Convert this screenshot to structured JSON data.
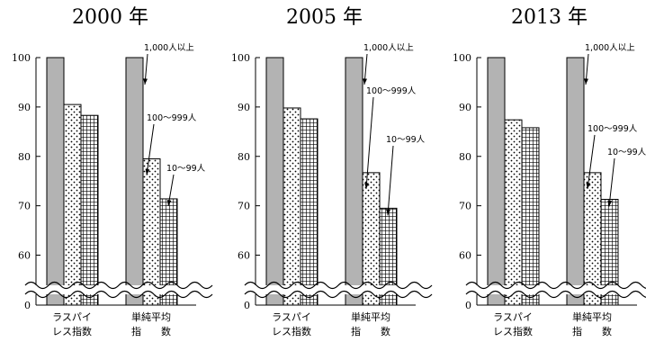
{
  "chart_data": [
    {
      "type": "bar",
      "title": "2000 年",
      "categories": [
        "ラスパイ\nレス指数",
        "単純平均\n指　　数"
      ],
      "series": [
        {
          "name": "1,000人以上",
          "values": [
            100,
            100
          ]
        },
        {
          "name": "100～999人",
          "values": [
            90.5,
            79.5
          ]
        },
        {
          "name": "10～99人",
          "values": [
            88.3,
            71.4
          ]
        }
      ],
      "yticks": [
        0,
        60,
        70,
        80,
        90,
        100
      ],
      "ylim": [
        55,
        100
      ],
      "axis_break": true,
      "grid": false
    },
    {
      "type": "bar",
      "title": "2005 年",
      "categories": [
        "ラスパイ\nレス指数",
        "単純平均\n指　　数"
      ],
      "series": [
        {
          "name": "1,000人以上",
          "values": [
            100,
            100
          ]
        },
        {
          "name": "100～999人",
          "values": [
            89.8,
            76.7
          ]
        },
        {
          "name": "10～99人",
          "values": [
            87.6,
            69.5
          ]
        }
      ],
      "yticks": [
        0,
        60,
        70,
        80,
        90,
        100
      ],
      "ylim": [
        55,
        100
      ],
      "axis_break": true,
      "grid": false
    },
    {
      "type": "bar",
      "title": "2013 年",
      "categories": [
        "ラスパイ\nレス指数",
        "単純平均\n指　　数"
      ],
      "series": [
        {
          "name": "1,000人以上",
          "values": [
            100,
            100
          ]
        },
        {
          "name": "100～999人",
          "values": [
            87.4,
            76.7
          ]
        },
        {
          "name": "10～99人",
          "values": [
            85.8,
            71.3
          ]
        }
      ],
      "yticks": [
        0,
        60,
        70,
        80,
        90,
        100
      ],
      "ylim": [
        55,
        100
      ],
      "axis_break": true,
      "grid": false
    }
  ],
  "colors": {
    "series_1": "#b3b3b3",
    "series_2": "#ffffff",
    "series_3": "#ffffff",
    "stroke": "#000000"
  }
}
